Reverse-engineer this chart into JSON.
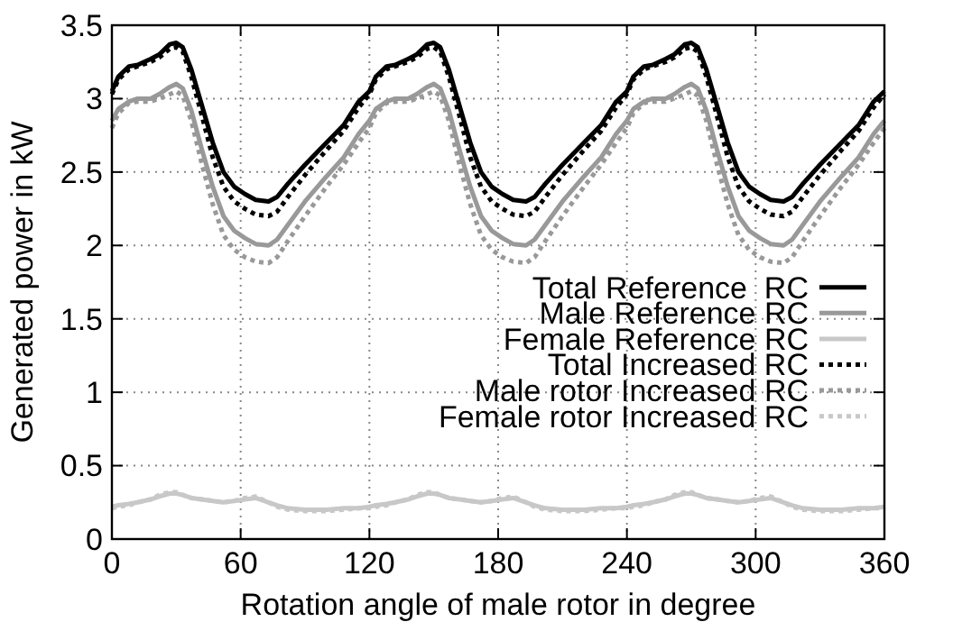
{
  "chart_data": {
    "type": "line",
    "xlabel": "Rotation angle of male rotor in degree",
    "ylabel": "Generated power in kW",
    "x": [
      0,
      3,
      8,
      12,
      18,
      22,
      27,
      30,
      33,
      37,
      42,
      47,
      52,
      57,
      62,
      67,
      73,
      77,
      82,
      90,
      100,
      108,
      115,
      120,
      123,
      128,
      132,
      138,
      142,
      147,
      150,
      153,
      157,
      162,
      167,
      172,
      177,
      182,
      187,
      193,
      197,
      202,
      210,
      220,
      228,
      235,
      240,
      243,
      248,
      252,
      258,
      262,
      267,
      270,
      273,
      277,
      282,
      287,
      292,
      297,
      302,
      307,
      313,
      317,
      322,
      330,
      340,
      348,
      355,
      360
    ],
    "xlim": [
      0,
      360
    ],
    "xticks": [
      0,
      60,
      120,
      180,
      240,
      300,
      360
    ],
    "ylim": [
      0,
      3.5
    ],
    "yticks": [
      0,
      0.5,
      1,
      1.5,
      2,
      2.5,
      3,
      3.5
    ],
    "grid": true,
    "legend": "right",
    "series": [
      {
        "name": "Total Reference  RC",
        "color": "#000000",
        "line_style": "solid",
        "values": [
          3.05,
          3.15,
          3.22,
          3.23,
          3.27,
          3.3,
          3.37,
          3.38,
          3.35,
          3.2,
          2.95,
          2.7,
          2.5,
          2.4,
          2.35,
          2.31,
          2.3,
          2.33,
          2.42,
          2.55,
          2.7,
          2.82,
          2.98,
          3.05,
          3.15,
          3.22,
          3.23,
          3.27,
          3.3,
          3.37,
          3.38,
          3.35,
          3.2,
          2.95,
          2.7,
          2.5,
          2.4,
          2.35,
          2.31,
          2.3,
          2.33,
          2.42,
          2.55,
          2.7,
          2.82,
          2.98,
          3.05,
          3.15,
          3.22,
          3.23,
          3.27,
          3.3,
          3.37,
          3.38,
          3.35,
          3.2,
          2.95,
          2.7,
          2.5,
          2.4,
          2.35,
          2.31,
          2.3,
          2.33,
          2.42,
          2.55,
          2.7,
          2.82,
          2.98,
          3.05
        ]
      },
      {
        "name": "Male Reference RC",
        "color": "#999999",
        "line_style": "solid",
        "values": [
          2.85,
          2.93,
          2.98,
          3.0,
          3.0,
          3.03,
          3.08,
          3.1,
          3.07,
          2.92,
          2.65,
          2.4,
          2.2,
          2.1,
          2.05,
          2.01,
          2.0,
          2.04,
          2.14,
          2.3,
          2.47,
          2.6,
          2.76,
          2.85,
          2.93,
          2.98,
          3.0,
          3.0,
          3.03,
          3.08,
          3.1,
          3.07,
          2.92,
          2.65,
          2.4,
          2.2,
          2.1,
          2.05,
          2.01,
          2.0,
          2.04,
          2.14,
          2.3,
          2.47,
          2.6,
          2.76,
          2.85,
          2.93,
          2.98,
          3.0,
          3.0,
          3.03,
          3.08,
          3.1,
          3.07,
          2.92,
          2.65,
          2.4,
          2.2,
          2.1,
          2.05,
          2.01,
          2.0,
          2.04,
          2.14,
          2.3,
          2.47,
          2.6,
          2.76,
          2.85
        ]
      },
      {
        "name": "Female Reference RC",
        "color": "#c8c8c8",
        "line_style": "solid",
        "values": [
          0.22,
          0.23,
          0.24,
          0.25,
          0.27,
          0.29,
          0.31,
          0.31,
          0.3,
          0.28,
          0.27,
          0.26,
          0.25,
          0.26,
          0.27,
          0.28,
          0.25,
          0.23,
          0.21,
          0.2,
          0.2,
          0.21,
          0.21,
          0.22,
          0.23,
          0.24,
          0.25,
          0.27,
          0.29,
          0.31,
          0.31,
          0.3,
          0.28,
          0.27,
          0.26,
          0.25,
          0.26,
          0.27,
          0.28,
          0.25,
          0.23,
          0.21,
          0.2,
          0.2,
          0.21,
          0.21,
          0.22,
          0.23,
          0.24,
          0.25,
          0.27,
          0.29,
          0.31,
          0.31,
          0.3,
          0.28,
          0.27,
          0.26,
          0.25,
          0.26,
          0.27,
          0.28,
          0.25,
          0.23,
          0.21,
          0.2,
          0.2,
          0.21,
          0.21,
          0.22
        ]
      },
      {
        "name": "Total Increased RC",
        "color": "#000000",
        "line_style": "dotted",
        "values": [
          3.03,
          3.13,
          3.2,
          3.22,
          3.25,
          3.28,
          3.34,
          3.35,
          3.32,
          3.15,
          2.88,
          2.6,
          2.4,
          2.3,
          2.25,
          2.21,
          2.2,
          2.23,
          2.33,
          2.48,
          2.65,
          2.78,
          2.94,
          3.03,
          3.13,
          3.2,
          3.22,
          3.25,
          3.28,
          3.34,
          3.35,
          3.32,
          3.15,
          2.88,
          2.6,
          2.4,
          2.3,
          2.25,
          2.21,
          2.2,
          2.23,
          2.33,
          2.48,
          2.65,
          2.78,
          2.94,
          3.03,
          3.13,
          3.2,
          3.22,
          3.25,
          3.28,
          3.34,
          3.35,
          3.32,
          3.15,
          2.88,
          2.6,
          2.4,
          2.3,
          2.25,
          2.21,
          2.2,
          2.23,
          2.33,
          2.48,
          2.65,
          2.78,
          2.94,
          3.03
        ]
      },
      {
        "name": "Male rotor Increased RC",
        "color": "#999999",
        "line_style": "dotted",
        "values": [
          2.8,
          2.9,
          2.97,
          2.98,
          2.98,
          3.0,
          3.03,
          3.05,
          3.02,
          2.85,
          2.55,
          2.28,
          2.07,
          1.97,
          1.92,
          1.89,
          1.88,
          1.92,
          2.03,
          2.2,
          2.4,
          2.55,
          2.7,
          2.8,
          2.9,
          2.97,
          2.98,
          2.98,
          3.0,
          3.03,
          3.05,
          3.02,
          2.85,
          2.55,
          2.28,
          2.07,
          1.97,
          1.92,
          1.89,
          1.88,
          1.92,
          2.03,
          2.2,
          2.4,
          2.55,
          2.7,
          2.8,
          2.9,
          2.97,
          2.98,
          2.98,
          3.0,
          3.03,
          3.05,
          3.02,
          2.85,
          2.55,
          2.28,
          2.07,
          1.97,
          1.92,
          1.89,
          1.88,
          1.92,
          2.03,
          2.2,
          2.4,
          2.55,
          2.7,
          2.8
        ]
      },
      {
        "name": "Female rotor Increased RC",
        "color": "#c8c8c8",
        "line_style": "dotted",
        "values": [
          0.21,
          0.22,
          0.23,
          0.25,
          0.27,
          0.3,
          0.32,
          0.32,
          0.3,
          0.28,
          0.27,
          0.26,
          0.25,
          0.26,
          0.28,
          0.29,
          0.25,
          0.22,
          0.2,
          0.19,
          0.19,
          0.2,
          0.21,
          0.21,
          0.22,
          0.23,
          0.25,
          0.27,
          0.3,
          0.32,
          0.32,
          0.3,
          0.28,
          0.27,
          0.26,
          0.25,
          0.26,
          0.28,
          0.29,
          0.25,
          0.22,
          0.2,
          0.19,
          0.19,
          0.2,
          0.21,
          0.21,
          0.22,
          0.23,
          0.25,
          0.27,
          0.3,
          0.32,
          0.32,
          0.3,
          0.28,
          0.27,
          0.26,
          0.25,
          0.26,
          0.28,
          0.29,
          0.25,
          0.22,
          0.2,
          0.19,
          0.19,
          0.2,
          0.21,
          0.21
        ]
      }
    ]
  }
}
